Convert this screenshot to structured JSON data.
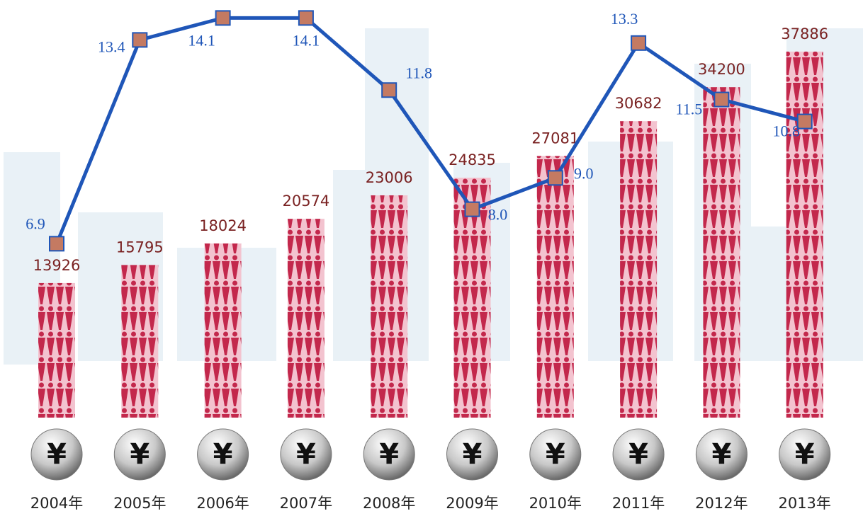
{
  "chart_data": {
    "type": "bar",
    "categories": [
      "2004年",
      "2005年",
      "2006年",
      "2007年",
      "2008年",
      "2009年",
      "2010年",
      "2011年",
      "2012年",
      "2013年"
    ],
    "currency_symbol": "¥",
    "series": [
      {
        "type": "bar",
        "color": "#c3284c",
        "label_color": "#7a2222",
        "values": [
          13926,
          15795,
          18024,
          20574,
          23006,
          24835,
          27081,
          30682,
          34200,
          37886
        ]
      },
      {
        "type": "line",
        "color": "#1f56b8",
        "marker_color": "#c47a62",
        "values": [
          6.9,
          13.4,
          14.1,
          14.1,
          11.8,
          8.0,
          9.0,
          13.3,
          11.5,
          10.8
        ],
        "value_labels": [
          "6.9",
          "13.4",
          "14.1",
          "14.1",
          "11.8",
          "8.0",
          "9.0",
          "13.3",
          "11.5",
          "10.8"
        ]
      }
    ]
  }
}
